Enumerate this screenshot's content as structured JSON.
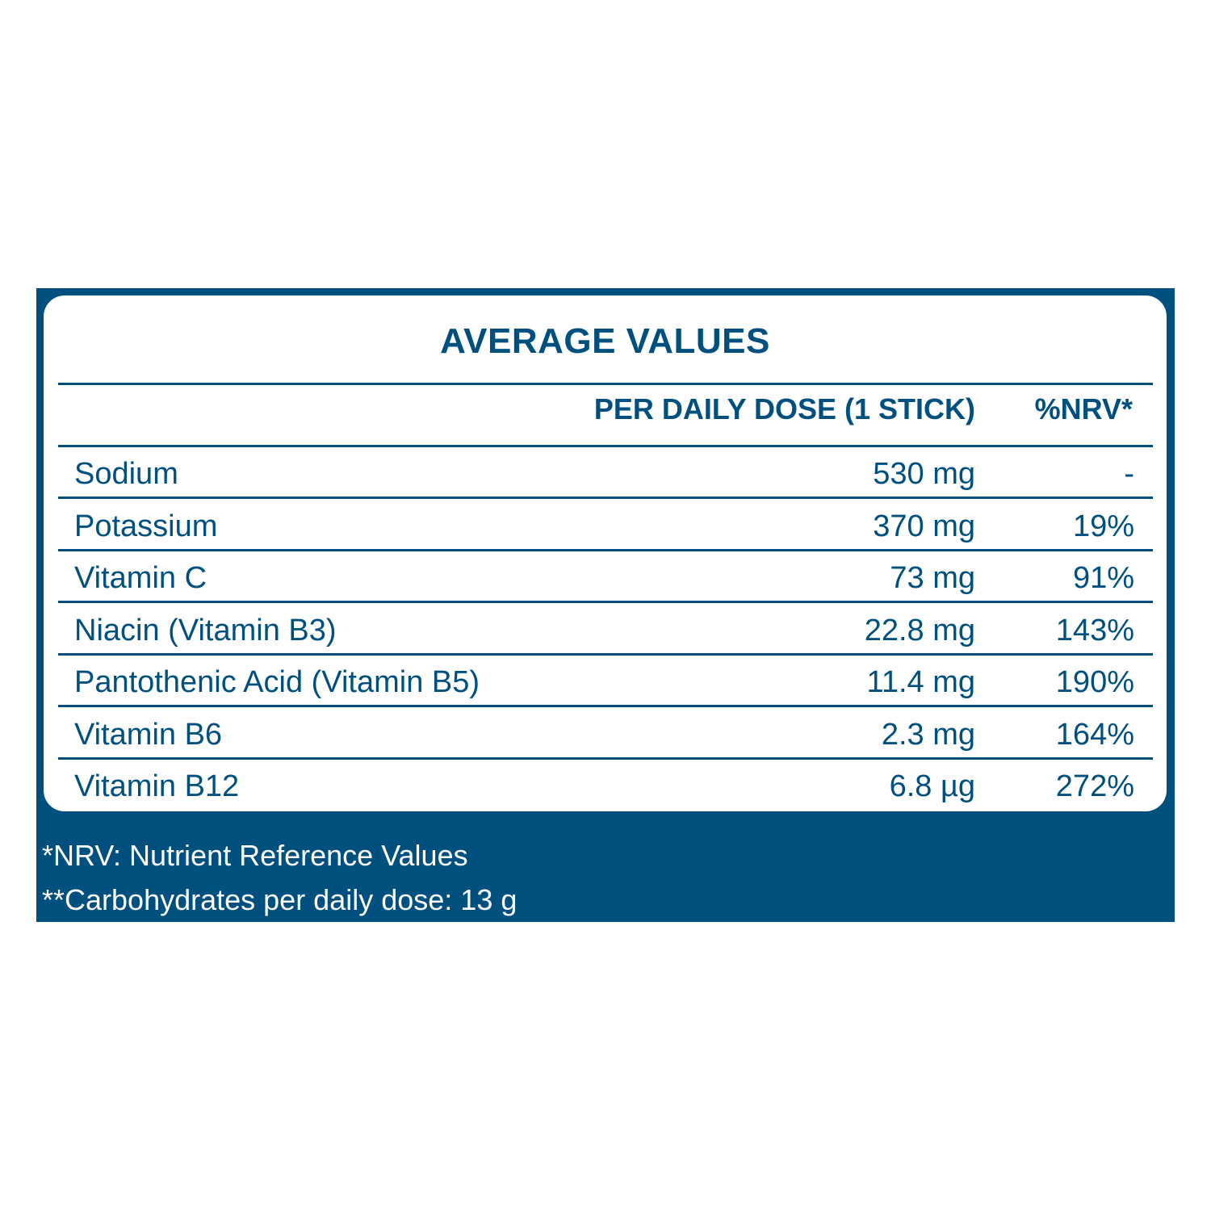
{
  "title": "AVERAGE VALUES",
  "headers": {
    "amount": "PER DAILY DOSE (1 STICK)",
    "nrv": "%NRV*"
  },
  "rows": [
    {
      "name": "Sodium",
      "amount": "530 mg",
      "nrv": "-"
    },
    {
      "name": "Potassium",
      "amount": "370 mg",
      "nrv": "19%"
    },
    {
      "name": "Vitamin C",
      "amount": "73 mg",
      "nrv": "91%"
    },
    {
      "name": "Niacin (Vitamin B3)",
      "amount": "22.8 mg",
      "nrv": "143%"
    },
    {
      "name": "Pantothenic Acid (Vitamin B5)",
      "amount": "11.4 mg",
      "nrv": "190%"
    },
    {
      "name": "Vitamin B6",
      "amount": "2.3 mg",
      "nrv": "164%"
    },
    {
      "name": "Vitamin B12",
      "amount": "6.8 µg",
      "nrv": "272%"
    }
  ],
  "footnotes": [
    "*NRV: Nutrient Reference Values",
    "**Carbohydrates per daily dose: 13 g"
  ],
  "colors": {
    "brand": "#00507f",
    "background": "#ffffff"
  }
}
